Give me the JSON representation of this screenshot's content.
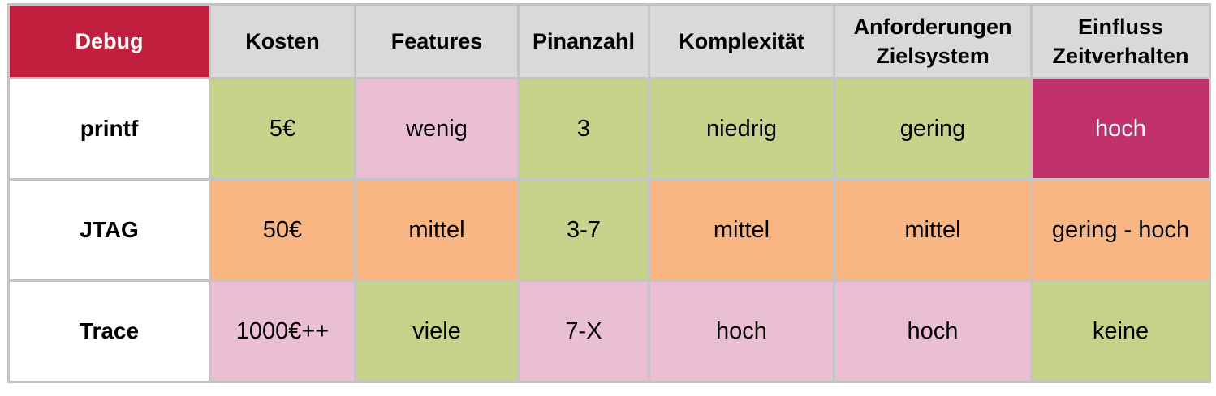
{
  "table": {
    "header": [
      "Debug",
      "Kosten",
      "Features",
      "Pinanzahl",
      "Komplexität",
      "Anforderungen Zielsystem",
      "Einfluss Zeitverhalten"
    ],
    "rows": [
      [
        "printf",
        "5€",
        "wenig",
        "3",
        "niedrig",
        "gering",
        "hoch"
      ],
      [
        "JTAG",
        "50€",
        "mittel",
        "3-7",
        "mittel",
        "mittel",
        "gering - hoch"
      ],
      [
        "Trace",
        "1000€++",
        "viele",
        "7-X",
        "hoch",
        "hoch",
        "keine"
      ]
    ]
  }
}
